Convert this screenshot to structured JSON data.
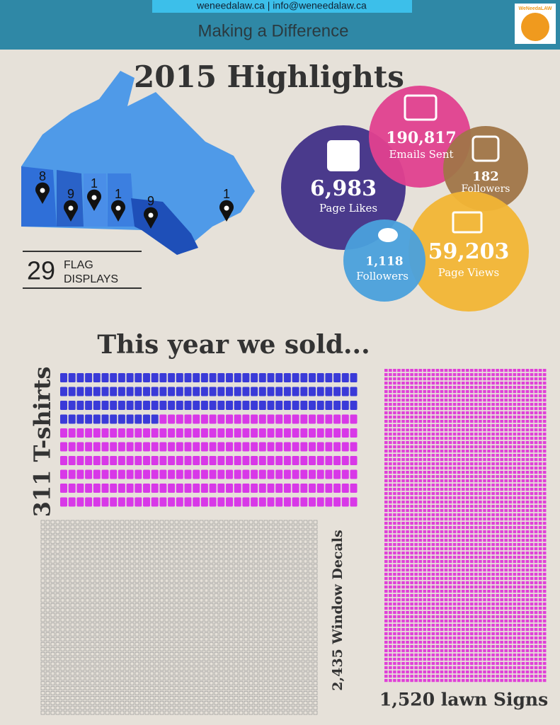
{
  "header": {
    "contact": "weneedalaw.ca | info@weneedalaw.ca",
    "tagline": "Making a Difference",
    "logo": "WeNeedaLAW"
  },
  "title": "2015 Highlights",
  "map": {
    "pins": [
      "8",
      "9",
      "1",
      "1",
      "9",
      "1"
    ],
    "flag_count": "29",
    "flag_label_1": "FLAG",
    "flag_label_2": "DISPLAYS"
  },
  "social": {
    "facebook": {
      "value": "6,983",
      "label": "Page Likes"
    },
    "email": {
      "value": "190,817",
      "label": "Emails Sent"
    },
    "instagram": {
      "value": "182",
      "label": "Followers"
    },
    "twitter": {
      "value": "1,118",
      "label": "Followers"
    },
    "web": {
      "value": "59,203",
      "label": "Page Views"
    }
  },
  "sold": {
    "heading": "This year we sold...",
    "tshirts": "311 T-shirts",
    "decals": "2,435 Window Decals",
    "signs": "1,520 lawn Signs"
  }
}
